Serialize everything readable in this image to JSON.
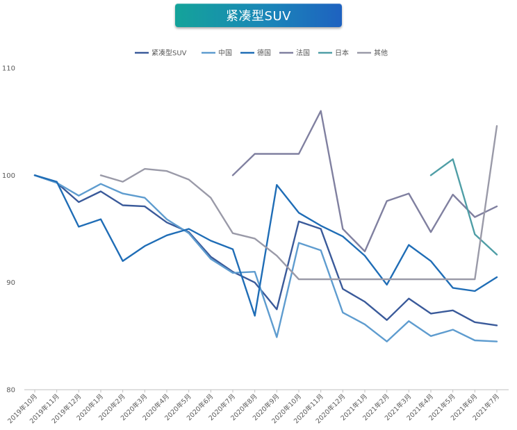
{
  "chart_data": {
    "type": "line",
    "title": "紧凑型SUV",
    "xlabel": "",
    "ylabel": "",
    "ylim": [
      80,
      110
    ],
    "yticks": [
      80,
      90,
      100,
      110
    ],
    "grid": false,
    "legend_position": "top",
    "categories": [
      "2019年10月",
      "2019年11月",
      "2019年12月",
      "2020年1月",
      "2020年2月",
      "2020年3月",
      "2020年4月",
      "2020年5月",
      "2020年6月",
      "2020年7月",
      "2020年8月",
      "2020年9月",
      "2020年10月",
      "2020年11月",
      "2020年12月",
      "2021年1月",
      "2021年2月",
      "2021年3月",
      "2021年4月",
      "2021年5月",
      "2021年6月",
      "2021年7月"
    ],
    "series": [
      {
        "name": "紧凑型SUV",
        "color": "#3a5a9a",
        "values": [
          100,
          99.3,
          97.5,
          98.5,
          97.2,
          97.1,
          95.6,
          94.7,
          92.4,
          91.0,
          90.0,
          87.5,
          95.7,
          95.0,
          89.4,
          88.2,
          86.5,
          88.5,
          87.1,
          87.4,
          86.3,
          86.0
        ]
      },
      {
        "name": "中国",
        "color": "#5e9ccf",
        "values": [
          100,
          99.3,
          98.1,
          99.2,
          98.3,
          97.9,
          95.9,
          94.6,
          92.2,
          90.9,
          91.0,
          84.9,
          93.7,
          93.0,
          87.2,
          86.1,
          84.5,
          86.4,
          85.0,
          85.6,
          84.6,
          84.5
        ]
      },
      {
        "name": "德国",
        "color": "#1f6db6",
        "values": [
          100,
          99.4,
          95.2,
          95.9,
          92.0,
          93.4,
          94.4,
          95.0,
          93.9,
          93.1,
          86.9,
          99.1,
          96.5,
          95.3,
          94.3,
          92.5,
          89.8,
          93.5,
          92.0,
          89.5,
          89.2,
          90.5
        ]
      },
      {
        "name": "法国",
        "color": "#8080a0",
        "values": [
          null,
          null,
          null,
          null,
          null,
          null,
          null,
          null,
          null,
          100.0,
          102.0,
          102.0,
          102.0,
          106.0,
          95.0,
          92.9,
          97.6,
          98.3,
          94.7,
          98.2,
          96.1,
          97.1
        ]
      },
      {
        "name": "日本",
        "color": "#4f9ea6",
        "values": [
          null,
          null,
          null,
          null,
          null,
          null,
          null,
          null,
          null,
          null,
          null,
          null,
          null,
          null,
          null,
          null,
          null,
          null,
          100.0,
          101.5,
          94.5,
          92.6
        ]
      },
      {
        "name": "其他",
        "color": "#9a9aa8",
        "values": [
          null,
          null,
          null,
          100.0,
          99.4,
          100.6,
          100.4,
          99.6,
          97.9,
          94.6,
          94.1,
          92.5,
          90.3,
          90.3,
          90.3,
          90.3,
          90.3,
          90.3,
          90.3,
          90.3,
          90.3,
          104.6
        ]
      }
    ]
  }
}
